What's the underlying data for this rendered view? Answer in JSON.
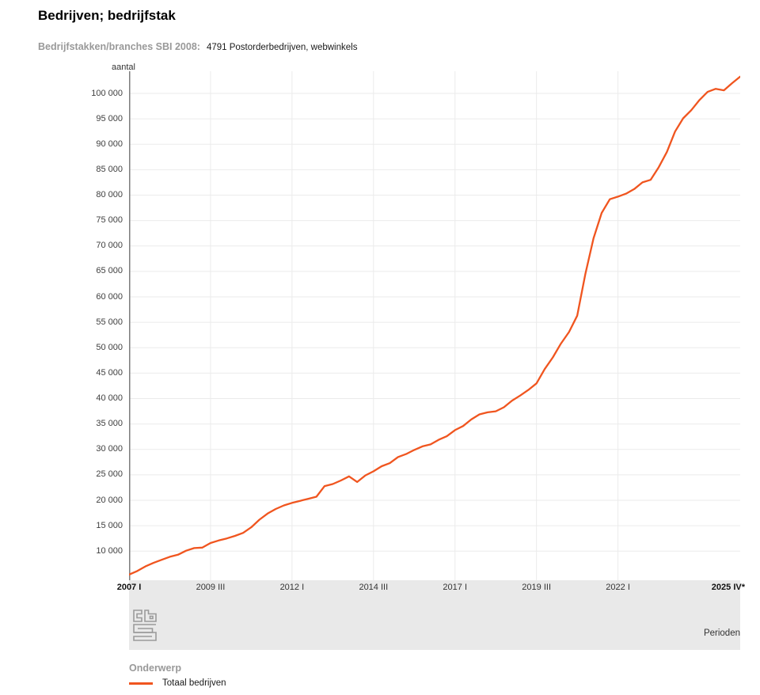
{
  "header": {
    "title": "Bedrijven; bedrijfstak",
    "filter_label": "Bedrijfstakken/branches SBI 2008:",
    "filter_value": "4791 Postorderbedrijven, webwinkels"
  },
  "colors": {
    "line": "#F0551F",
    "grid": "#ebebeb",
    "axis": "#7d7d7d",
    "band": "#e9e9e9",
    "muted_label": "#999999"
  },
  "axis": {
    "y_unit": "aantal",
    "y_ticks": [
      {
        "v": 100000,
        "label": "100 000"
      },
      {
        "v": 95000,
        "label": "95 000"
      },
      {
        "v": 90000,
        "label": "90 000"
      },
      {
        "v": 85000,
        "label": "85 000"
      },
      {
        "v": 80000,
        "label": "80 000"
      },
      {
        "v": 75000,
        "label": "75 000"
      },
      {
        "v": 70000,
        "label": "70 000"
      },
      {
        "v": 65000,
        "label": "65 000"
      },
      {
        "v": 60000,
        "label": "60 000"
      },
      {
        "v": 55000,
        "label": "55 000"
      },
      {
        "v": 50000,
        "label": "50 000"
      },
      {
        "v": 45000,
        "label": "45 000"
      },
      {
        "v": 40000,
        "label": "40 000"
      },
      {
        "v": 35000,
        "label": "35 000"
      },
      {
        "v": 30000,
        "label": "30 000"
      },
      {
        "v": 25000,
        "label": "25 000"
      },
      {
        "v": 20000,
        "label": "20 000"
      },
      {
        "v": 15000,
        "label": "15 000"
      },
      {
        "v": 10000,
        "label": "10 000"
      }
    ],
    "x_ticks": [
      {
        "q": 0,
        "label": "2007 I",
        "bold": true
      },
      {
        "q": 10,
        "label": "2009 III",
        "bold": false
      },
      {
        "q": 20,
        "label": "2012 I",
        "bold": false
      },
      {
        "q": 30,
        "label": "2014 III",
        "bold": false
      },
      {
        "q": 40,
        "label": "2017 I",
        "bold": false
      },
      {
        "q": 50,
        "label": "2019 III",
        "bold": false
      },
      {
        "q": 60,
        "label": "2022 I",
        "bold": false
      },
      {
        "q": 75,
        "label": "2025 IV*",
        "bold": true,
        "align": "right"
      }
    ],
    "x_axis_title": "Perioden"
  },
  "legend": {
    "group_title": "Onderwerp",
    "series_label": "Totaal bedrijven"
  },
  "chart_data": {
    "type": "line",
    "title": "Bedrijven; bedrijfstak",
    "subtitle": "Bedrijfstakken/branches SBI 2008: 4791 Postorderbedrijven, webwinkels",
    "ylabel": "aantal",
    "xlabel": "Perioden",
    "ylim": [
      4600,
      104400
    ],
    "grid": true,
    "legend_position": "bottom",
    "categories": [
      "2007 I",
      "2007 II",
      "2007 III",
      "2007 IV",
      "2008 I",
      "2008 II",
      "2008 III",
      "2008 IV",
      "2009 I",
      "2009 II",
      "2009 III",
      "2009 IV",
      "2010 I",
      "2010 II",
      "2010 III",
      "2010 IV",
      "2011 I",
      "2011 II",
      "2011 III",
      "2011 IV",
      "2012 I",
      "2012 II",
      "2012 III",
      "2012 IV",
      "2013 I",
      "2013 II",
      "2013 III",
      "2013 IV",
      "2014 I",
      "2014 II",
      "2014 III",
      "2014 IV",
      "2015 I",
      "2015 II",
      "2015 III",
      "2015 IV",
      "2016 I",
      "2016 II",
      "2016 III",
      "2016 IV",
      "2017 I",
      "2017 II",
      "2017 III",
      "2017 IV",
      "2018 I",
      "2018 II",
      "2018 III",
      "2018 IV",
      "2019 I",
      "2019 II",
      "2019 III",
      "2019 IV",
      "2020 I",
      "2020 II",
      "2020 III",
      "2020 IV",
      "2021 I",
      "2021 II",
      "2021 III",
      "2021 IV",
      "2022 I",
      "2022 II",
      "2022 III",
      "2022 IV",
      "2023 I",
      "2023 II",
      "2023 III",
      "2023 IV",
      "2024 I",
      "2024 II",
      "2024 III",
      "2024 IV",
      "2025 I",
      "2025 II",
      "2025 III",
      "2025 IV*"
    ],
    "series": [
      {
        "name": "Totaal bedrijven",
        "values": [
          5400,
          6100,
          7000,
          7700,
          8300,
          8900,
          9300,
          10100,
          10600,
          10700,
          11600,
          12100,
          12500,
          13000,
          13600,
          14700,
          16200,
          17400,
          18300,
          19000,
          19500,
          19900,
          20300,
          20700,
          22800,
          23200,
          23900,
          24700,
          23600,
          24900,
          25700,
          26700,
          27300,
          28500,
          29100,
          29900,
          30600,
          31000,
          31900,
          32600,
          33800,
          34600,
          35900,
          36900,
          37300,
          37500,
          38300,
          39600,
          40600,
          41700,
          43000,
          45800,
          48100,
          50800,
          53100,
          56300,
          64500,
          71500,
          76500,
          79200,
          79700,
          80300,
          81200,
          82500,
          83000,
          85500,
          88500,
          92500,
          95100,
          96700,
          98700,
          100300,
          100900,
          100600,
          102000,
          103300
        ]
      }
    ]
  }
}
